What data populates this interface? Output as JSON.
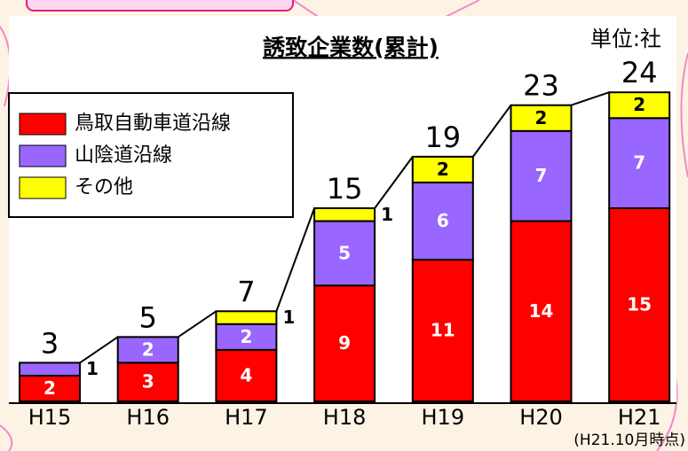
{
  "chart_data": {
    "type": "stacked-bar",
    "title": "誘致企業数(累計)",
    "unit": "単位:社",
    "note": "(H21.10月時点)",
    "categories": [
      "H15",
      "H16",
      "H17",
      "H18",
      "H19",
      "H20",
      "H21"
    ],
    "series": [
      {
        "name": "鳥取自動車道沿線",
        "color": "#ff0000",
        "values": [
          2,
          3,
          4,
          9,
          11,
          14,
          15
        ]
      },
      {
        "name": "山陰道沿線",
        "color": "#9966ff",
        "values": [
          1,
          2,
          2,
          5,
          6,
          7,
          7
        ]
      },
      {
        "name": "その他",
        "color": "#ffff00",
        "values": [
          0,
          0,
          1,
          1,
          2,
          2,
          2
        ]
      }
    ],
    "totals": [
      3,
      5,
      7,
      15,
      19,
      23,
      24
    ],
    "ylim": [
      0,
      30
    ]
  }
}
